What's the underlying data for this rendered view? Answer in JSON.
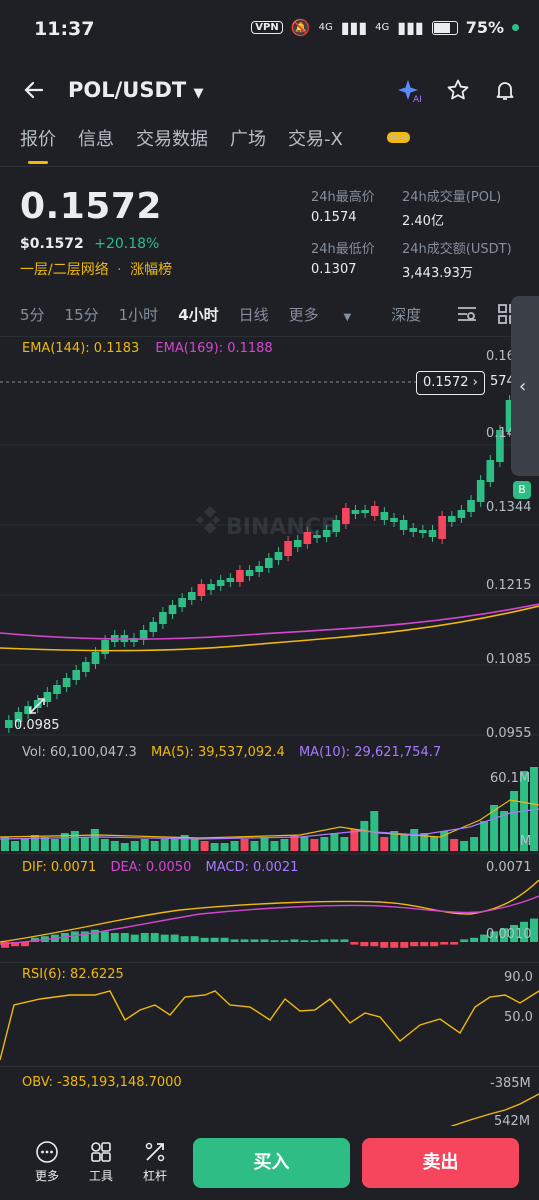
{
  "status_bar": {
    "time": "11:37",
    "vpn": "VPN",
    "signal1": "4G",
    "signal2": "4G",
    "battery": "75%"
  },
  "header": {
    "pair": "POL/USDT"
  },
  "tabs": [
    {
      "label": "报价",
      "active": true
    },
    {
      "label": "信息"
    },
    {
      "label": "交易数据"
    },
    {
      "label": "广场"
    },
    {
      "label": "交易-X",
      "badge": "New"
    }
  ],
  "price": {
    "last": "0.1572",
    "usd": "$0.1572",
    "change": "+20.18%",
    "tag1": "一层/二层网络",
    "tag2": "涨幅榜",
    "high_label": "24h最高价",
    "high": "0.1574",
    "low_label": "24h最低价",
    "low": "0.1307",
    "vol_label": "24h成交量(POL)",
    "vol": "2.40亿",
    "amt_label": "24h成交额(USDT)",
    "amt": "3,443.93万"
  },
  "timeframes": {
    "items": [
      "5分",
      "15分",
      "1小时",
      "4小时",
      "日线"
    ],
    "selected": "4小时",
    "more": "更多",
    "depth": "深度"
  },
  "ema": {
    "ema144": "EMA(144): 0.1183",
    "ema169": "EMA(169): 0.1188"
  },
  "chart_axis": {
    "labels": [
      "0.16",
      "0.14",
      "0.1344",
      "0.1215",
      "0.1085",
      "0.0955"
    ],
    "last_price_tag": "0.1572",
    "last_price_edge": "574",
    "min_label": "0.0985",
    "buy_marker": "B",
    "watermark": "BINANCE"
  },
  "volume": {
    "vol": "Vol: 60,100,047.3",
    "ma5": "MA(5): 39,537,092.4",
    "ma10": "MA(10): 29,621,754.7",
    "axis_top": "60.1M",
    "axis_low": "M"
  },
  "macd": {
    "dif": "DIF: 0.0071",
    "dea": "DEA: 0.0050",
    "macd": "MACD: 0.0021",
    "axis_top": "0.0071",
    "axis_mid": "0.0010"
  },
  "rsi": {
    "rsi": "RSI(6): 82.6225",
    "axis_top": "90.0",
    "axis_mid": "50.0"
  },
  "obv": {
    "obv": "OBV: -385,193,148.7000",
    "axis_top": "-385M",
    "axis_low": "542M",
    "axis_bottom": "542M"
  },
  "bottom_bar": {
    "more": "更多",
    "tools": "工具",
    "leverage": "杠杆",
    "buy": "买入",
    "sell": "卖出"
  },
  "colors": {
    "up": "#2ebd85",
    "down": "#f6465d",
    "accent": "#f0b90b",
    "ema169": "#d546d0"
  }
}
